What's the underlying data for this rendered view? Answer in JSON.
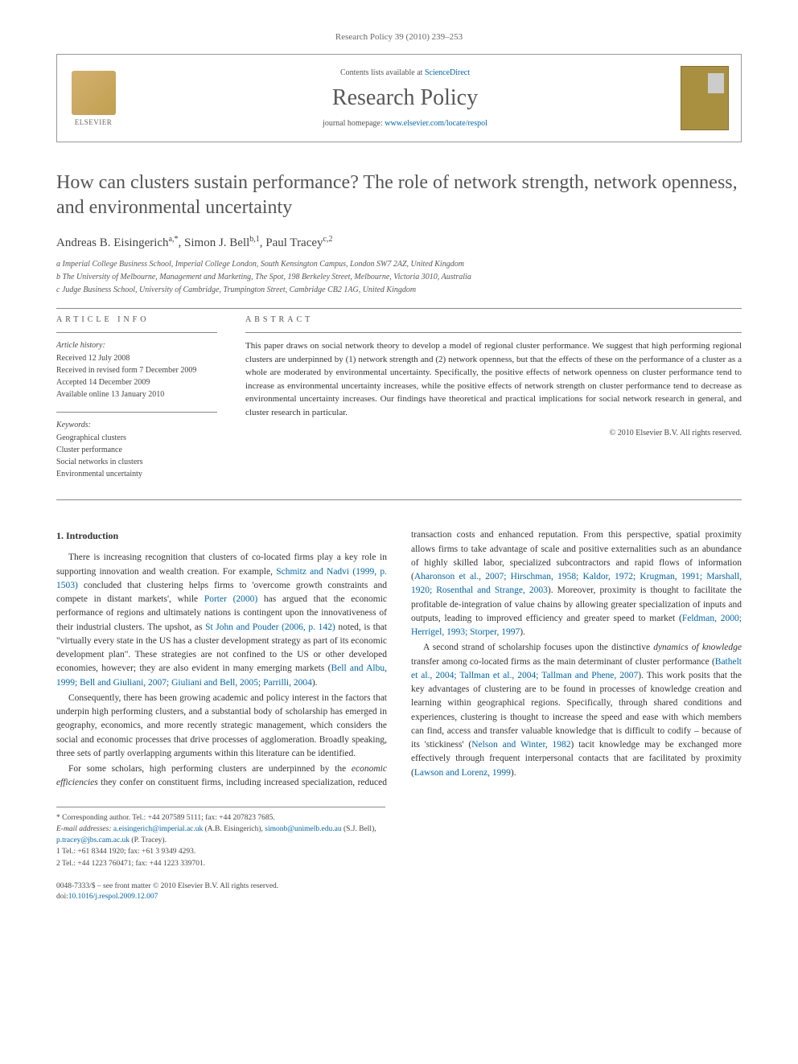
{
  "page_header": "Research Policy 39 (2010) 239–253",
  "journal_box": {
    "elsevier": "ELSEVIER",
    "contents_prefix": "Contents lists available at ",
    "contents_link": "ScienceDirect",
    "journal_name": "Research Policy",
    "homepage_prefix": "journal homepage: ",
    "homepage_url": "www.elsevier.com/locate/respol"
  },
  "title": "How can clusters sustain performance? The role of network strength, network openness, and environmental uncertainty",
  "authors_html": "Andreas B. Eisingerich",
  "authors": [
    {
      "name": "Andreas B. Eisingerich",
      "marks": "a,*"
    },
    {
      "name": "Simon J. Bell",
      "marks": "b,1"
    },
    {
      "name": "Paul Tracey",
      "marks": "c,2"
    }
  ],
  "affiliations": [
    "a Imperial College Business School, Imperial College London, South Kensington Campus, London SW7 2AZ, United Kingdom",
    "b The University of Melbourne, Management and Marketing, The Spot, 198 Berkeley Street, Melbourne, Victoria 3010, Australia",
    "c Judge Business School, University of Cambridge, Trumpington Street, Cambridge CB2 1AG, United Kingdom"
  ],
  "info": {
    "heading": "ARTICLE INFO",
    "history_label": "Article history:",
    "history": [
      "Received 12 July 2008",
      "Received in revised form 7 December 2009",
      "Accepted 14 December 2009",
      "Available online 13 January 2010"
    ],
    "keywords_label": "Keywords:",
    "keywords": [
      "Geographical clusters",
      "Cluster performance",
      "Social networks in clusters",
      "Environmental uncertainty"
    ]
  },
  "abstract": {
    "heading": "ABSTRACT",
    "text": "This paper draws on social network theory to develop a model of regional cluster performance. We suggest that high performing regional clusters are underpinned by (1) network strength and (2) network openness, but that the effects of these on the performance of a cluster as a whole are moderated by environmental uncertainty. Specifically, the positive effects of network openness on cluster performance tend to increase as environmental uncertainty increases, while the positive effects of network strength on cluster performance tend to decrease as environmental uncertainty increases. Our findings have theoretical and practical implications for social network research in general, and cluster research in particular.",
    "copyright": "© 2010 Elsevier B.V. All rights reserved."
  },
  "body": {
    "section_heading": "1. Introduction",
    "p1a": "There is increasing recognition that clusters of co-located firms play a key role in supporting innovation and wealth creation. For example, ",
    "p1_ref1": "Schmitz and Nadvi (1999, p. 1503)",
    "p1b": " concluded that clustering helps firms to 'overcome growth constraints and compete in distant markets', while ",
    "p1_ref2": "Porter (2000)",
    "p1c": " has argued that the economic performance of regions and ultimately nations is contingent upon the innovativeness of their industrial clusters. The upshot, as ",
    "p1_ref3": "St John and Pouder (2006, p. 142)",
    "p1d": " noted, is that \"virtually every state in the US has a cluster development strategy as part of its economic development plan\". These strategies are not confined to the US or other developed economies, however; they are also evident in many emerging markets (",
    "p1_ref4": "Bell and Albu, 1999; Bell and Giuliani, 2007; Giuliani and Bell, 2005; Parrilli, 2004",
    "p1e": ").",
    "p2": "Consequently, there has been growing academic and policy interest in the factors that underpin high performing clusters, and a substantial body of scholarship has emerged in geography, economics, and more recently strategic management, which considers the social and economic processes that drive processes of agglomeration. Broadly speaking, three sets of partly overlapping arguments within this literature can be identified.",
    "p3a": "For some scholars, high performing clusters are underpinned by the ",
    "p3_em1": "economic efficiencies",
    "p3b": " they confer on constituent firms, including increased specialization, reduced transaction costs and enhanced reputation. From this perspective, spatial proximity allows firms to take advantage of scale and positive externalities such as an abundance of highly skilled labor, specialized subcontractors and rapid flows of information (",
    "p3_ref1": "Aharonson et al., 2007; Hirschman, 1958; Kaldor, 1972; Krugman, 1991; Marshall, 1920; Rosenthal and Strange, 2003",
    "p3c": "). Moreover, proximity is thought to facilitate the profitable de-integration of value chains by allowing greater specialization of inputs and outputs, leading to improved efficiency and greater speed to market (",
    "p3_ref2": "Feldman, 2000; Herrigel, 1993; Storper, 1997",
    "p3d": ").",
    "p4a": "A second strand of scholarship focuses upon the distinctive ",
    "p4_em1": "dynamics of knowledge",
    "p4b": " transfer among co-located firms as the main determinant of cluster performance (",
    "p4_ref1": "Bathelt et al., 2004; Tallman et al., 2004; Tallman and Phene, 2007",
    "p4c": "). This work posits that the key advantages of clustering are to be found in processes of knowledge creation and learning within geographical regions. Specifically, through shared conditions and experiences, clustering is thought to increase the speed and ease with which members can find, access and transfer valuable knowledge that is difficult to codify – because of its 'stickiness' (",
    "p4_ref2": "Nelson and Winter, 1982",
    "p4d": ") tacit knowledge may be exchanged more effectively through frequent interpersonal contacts that are facilitated by proximity (",
    "p4_ref3": "Lawson and Lorenz, 1999",
    "p4e": ")."
  },
  "footnotes": {
    "corr": "* Corresponding author. Tel.: +44 207589 5111; fax: +44 207823 7685.",
    "email_label": "E-mail addresses:",
    "email1": "a.eisingerich@imperial.ac.uk",
    "email1_sfx": " (A.B. Eisingerich),",
    "email2": "simonb@unimelb.edu.au",
    "email2_sfx": " (S.J. Bell), ",
    "email3": "p.tracey@jbs.cam.ac.uk",
    "email3_sfx": " (P. Tracey).",
    "note1": "1 Tel.: +61 8344 1920; fax: +61 3 9349 4293.",
    "note2": "2 Tel.: +44 1223 760471; fax: +44 1223 339701."
  },
  "footer": {
    "line1": "0048-7333/$ – see front matter © 2010 Elsevier B.V. All rights reserved.",
    "doi_prefix": "doi:",
    "doi": "10.1016/j.respol.2009.12.007"
  }
}
